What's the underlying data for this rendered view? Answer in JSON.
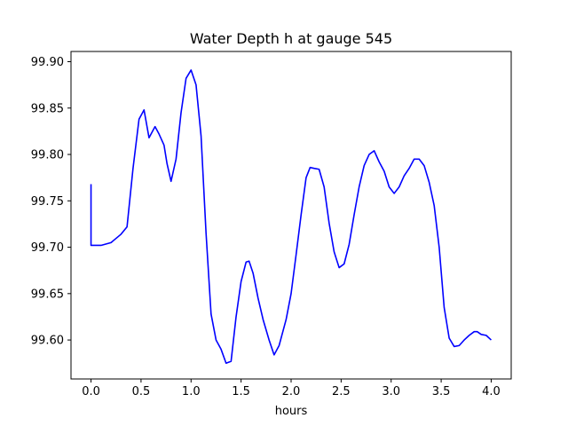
{
  "chart_data": {
    "type": "line",
    "title": "Water Depth h at gauge 545",
    "xlabel": "hours",
    "ylabel": "",
    "xlim": [
      -0.2,
      4.2
    ],
    "ylim": [
      99.558,
      99.911
    ],
    "xticks": [
      0.0,
      0.5,
      1.0,
      1.5,
      2.0,
      2.5,
      3.0,
      3.5,
      4.0
    ],
    "xtick_labels": [
      "0.0",
      "0.5",
      "1.0",
      "1.5",
      "2.0",
      "2.5",
      "3.0",
      "3.5",
      "4.0"
    ],
    "yticks": [
      99.6,
      99.65,
      99.7,
      99.75,
      99.8,
      99.85,
      99.9
    ],
    "ytick_labels": [
      "99.60",
      "99.65",
      "99.70",
      "99.75",
      "99.80",
      "99.85",
      "99.90"
    ],
    "grid": false,
    "legend": "none",
    "series": [
      {
        "color": "#0000ff",
        "x": [
          0.0,
          0.0,
          0.0,
          0.1,
          0.2,
          0.3,
          0.36,
          0.42,
          0.48,
          0.53,
          0.58,
          0.64,
          0.68,
          0.73,
          0.76,
          0.8,
          0.85,
          0.9,
          0.95,
          1.0,
          1.05,
          1.1,
          1.15,
          1.2,
          1.25,
          1.3,
          1.35,
          1.4,
          1.45,
          1.5,
          1.55,
          1.58,
          1.62,
          1.67,
          1.72,
          1.78,
          1.83,
          1.88,
          1.95,
          2.0,
          2.05,
          2.1,
          2.15,
          2.19,
          2.23,
          2.28,
          2.33,
          2.38,
          2.43,
          2.48,
          2.53,
          2.58,
          2.63,
          2.68,
          2.73,
          2.78,
          2.83,
          2.88,
          2.93,
          2.98,
          3.03,
          3.08,
          3.13,
          3.18,
          3.23,
          3.28,
          3.33,
          3.38,
          3.43,
          3.48,
          3.53,
          3.58,
          3.63,
          3.68,
          3.73,
          3.78,
          3.83,
          3.86,
          3.9,
          3.95,
          4.0
        ],
        "y": [
          99.768,
          99.75,
          99.702,
          99.702,
          99.705,
          99.714,
          99.722,
          99.785,
          99.838,
          99.848,
          99.818,
          99.83,
          99.822,
          99.81,
          99.79,
          99.771,
          99.795,
          99.845,
          99.882,
          99.891,
          99.875,
          99.82,
          99.715,
          99.628,
          99.6,
          99.59,
          99.575,
          99.577,
          99.625,
          99.663,
          99.684,
          99.685,
          99.672,
          99.645,
          99.622,
          99.6,
          99.584,
          99.594,
          99.622,
          99.65,
          99.692,
          99.735,
          99.775,
          99.786,
          99.785,
          99.784,
          99.765,
          99.726,
          99.695,
          99.678,
          99.682,
          99.703,
          99.735,
          99.765,
          99.788,
          99.8,
          99.804,
          99.792,
          99.782,
          99.765,
          99.758,
          99.765,
          99.777,
          99.785,
          99.795,
          99.795,
          99.788,
          99.77,
          99.745,
          99.7,
          99.635,
          99.602,
          99.593,
          99.594,
          99.6,
          99.605,
          99.609,
          99.609,
          99.606,
          99.605,
          99.6
        ]
      }
    ]
  }
}
